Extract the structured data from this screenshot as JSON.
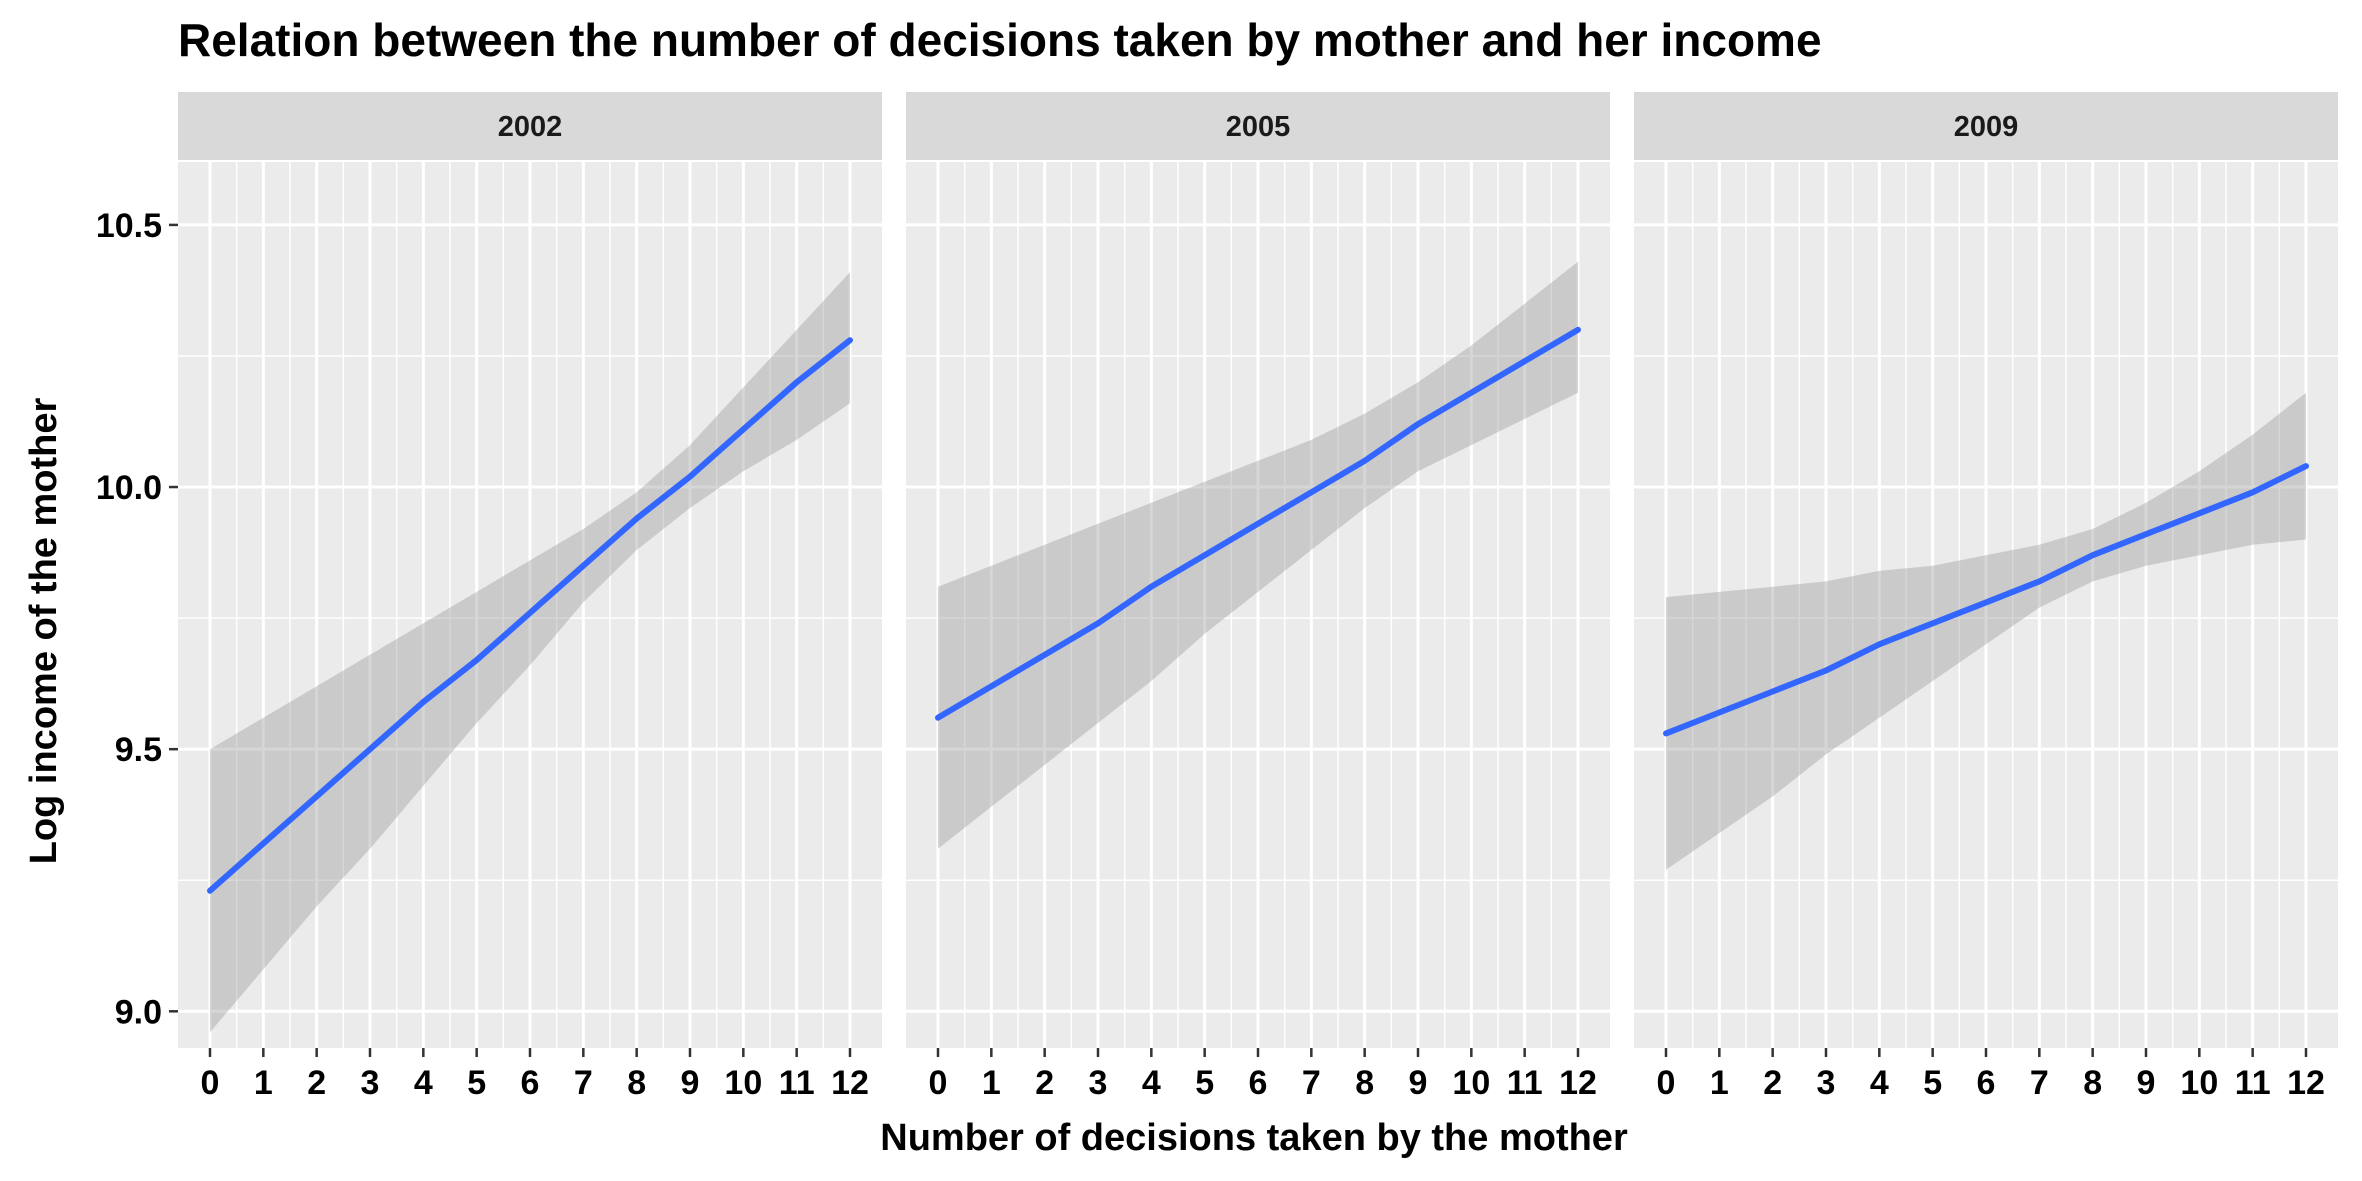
{
  "chart_data": {
    "type": "line",
    "title": "Relation between the number of decisions taken by mother and her income",
    "xlabel": "Number of decisions taken by the mother",
    "ylabel": "Log income of the mother",
    "xlim": [
      -0.6,
      12.6
    ],
    "ylim": [
      8.93,
      10.62
    ],
    "x_ticks": [
      0,
      1,
      2,
      3,
      4,
      5,
      6,
      7,
      8,
      9,
      10,
      11,
      12
    ],
    "y_ticks": [
      9.0,
      9.5,
      10.0,
      10.5
    ],
    "y_tick_labels": [
      "9.0",
      "9.5",
      "10.0",
      "10.5"
    ],
    "grid": true,
    "line_color": "#3366FF",
    "band_color": "#999999",
    "panel_background": "#EBEBEB",
    "strip_background": "#D9D9D9",
    "facets": [
      {
        "label": "2002",
        "x": [
          0,
          1,
          2,
          3,
          4,
          5,
          6,
          7,
          8,
          9,
          10,
          11,
          12
        ],
        "fit": [
          9.23,
          9.32,
          9.41,
          9.5,
          9.59,
          9.67,
          9.76,
          9.85,
          9.94,
          10.02,
          10.11,
          10.2,
          10.28
        ],
        "lower": [
          8.96,
          9.08,
          9.2,
          9.31,
          9.43,
          9.55,
          9.66,
          9.78,
          9.88,
          9.96,
          10.03,
          10.09,
          10.16
        ],
        "upper": [
          9.5,
          9.56,
          9.62,
          9.68,
          9.74,
          9.8,
          9.86,
          9.92,
          9.99,
          10.08,
          10.19,
          10.3,
          10.41
        ]
      },
      {
        "label": "2005",
        "x": [
          0,
          1,
          2,
          3,
          4,
          5,
          6,
          7,
          8,
          9,
          10,
          11,
          12
        ],
        "fit": [
          9.56,
          9.62,
          9.68,
          9.74,
          9.81,
          9.87,
          9.93,
          9.99,
          10.05,
          10.12,
          10.18,
          10.24,
          10.3
        ],
        "lower": [
          9.31,
          9.39,
          9.47,
          9.55,
          9.63,
          9.72,
          9.8,
          9.88,
          9.96,
          10.03,
          10.08,
          10.13,
          10.18
        ],
        "upper": [
          9.81,
          9.85,
          9.89,
          9.93,
          9.97,
          10.01,
          10.05,
          10.09,
          10.14,
          10.2,
          10.27,
          10.35,
          10.43
        ]
      },
      {
        "label": "2009",
        "x": [
          0,
          1,
          2,
          3,
          4,
          5,
          6,
          7,
          8,
          9,
          10,
          11,
          12
        ],
        "fit": [
          9.53,
          9.57,
          9.61,
          9.65,
          9.7,
          9.74,
          9.78,
          9.82,
          9.87,
          9.91,
          9.95,
          9.99,
          10.04
        ],
        "lower": [
          9.27,
          9.34,
          9.41,
          9.49,
          9.56,
          9.63,
          9.7,
          9.77,
          9.82,
          9.85,
          9.87,
          9.89,
          9.9
        ],
        "upper": [
          9.79,
          9.8,
          9.81,
          9.82,
          9.84,
          9.85,
          9.87,
          9.89,
          9.92,
          9.97,
          10.03,
          10.1,
          10.18
        ]
      }
    ]
  }
}
